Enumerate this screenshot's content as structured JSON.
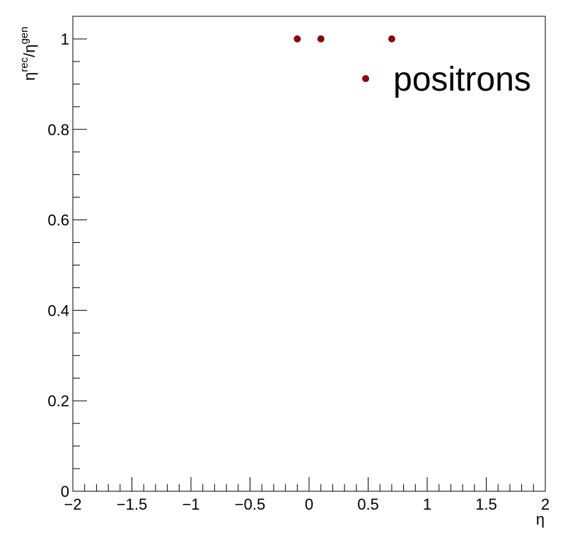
{
  "chart_data": {
    "type": "scatter",
    "xlabel": "η",
    "ylabel": {
      "base1": "η",
      "sup1": "rec",
      "slash": "/",
      "base2": "η",
      "sup2": "gen"
    },
    "xlim": [
      -2,
      2
    ],
    "ylim": [
      0,
      1.05
    ],
    "x_ticks": [
      -2,
      -1.5,
      -1,
      -0.5,
      0,
      0.5,
      1,
      1.5,
      2
    ],
    "x_tick_labels": [
      "−2",
      "−1.5",
      "−1",
      "−0.5",
      "0",
      "0.5",
      "1",
      "1.5",
      "2"
    ],
    "y_ticks": [
      0,
      0.2,
      0.4,
      0.6,
      0.8,
      1
    ],
    "y_tick_labels": [
      "0",
      "0.2",
      "0.4",
      "0.6",
      "0.8",
      "1"
    ],
    "grid": false,
    "legend_position": "top-right",
    "series": [
      {
        "name": "positrons",
        "color": "#990000",
        "x": [
          -0.1,
          0.1,
          0.7
        ],
        "y": [
          1,
          1,
          1
        ]
      }
    ]
  }
}
